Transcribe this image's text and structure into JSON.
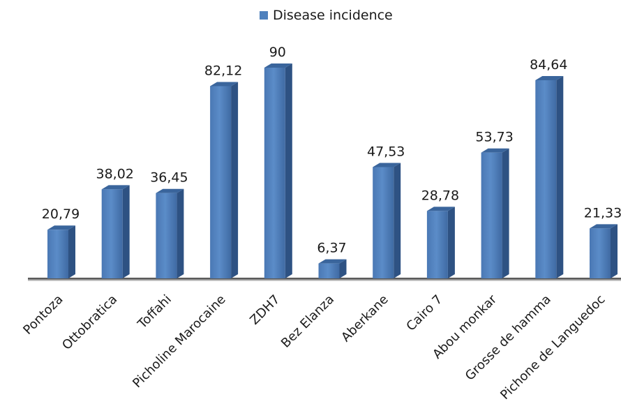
{
  "chart_data": {
    "type": "bar",
    "categories": [
      "Pontoza",
      "Ottobratica",
      "Toffahi",
      "Picholine Marocaine",
      "ZDH7",
      "Bez Elanza",
      "Aberkane",
      "Cairo 7",
      "Abou monkar",
      "Grosse de hamma",
      "Pichone de Languedoc"
    ],
    "data_labels": [
      "20,79",
      "38,02",
      "36,45",
      "82,12",
      "90",
      "6,37",
      "47,53",
      "28,78",
      "53,73",
      "84,64",
      "21,33"
    ],
    "series": [
      {
        "name": "Disease incidence",
        "values": [
          20.79,
          38.02,
          36.45,
          82.12,
          90,
          6.37,
          47.53,
          28.78,
          53.73,
          84.64,
          21.33
        ],
        "color": "#4f81bd"
      }
    ],
    "title": "",
    "xlabel": "",
    "ylabel": "",
    "ylim": [
      0,
      90
    ],
    "grid": false,
    "legend_position": "top-center",
    "style": "3d-column"
  }
}
